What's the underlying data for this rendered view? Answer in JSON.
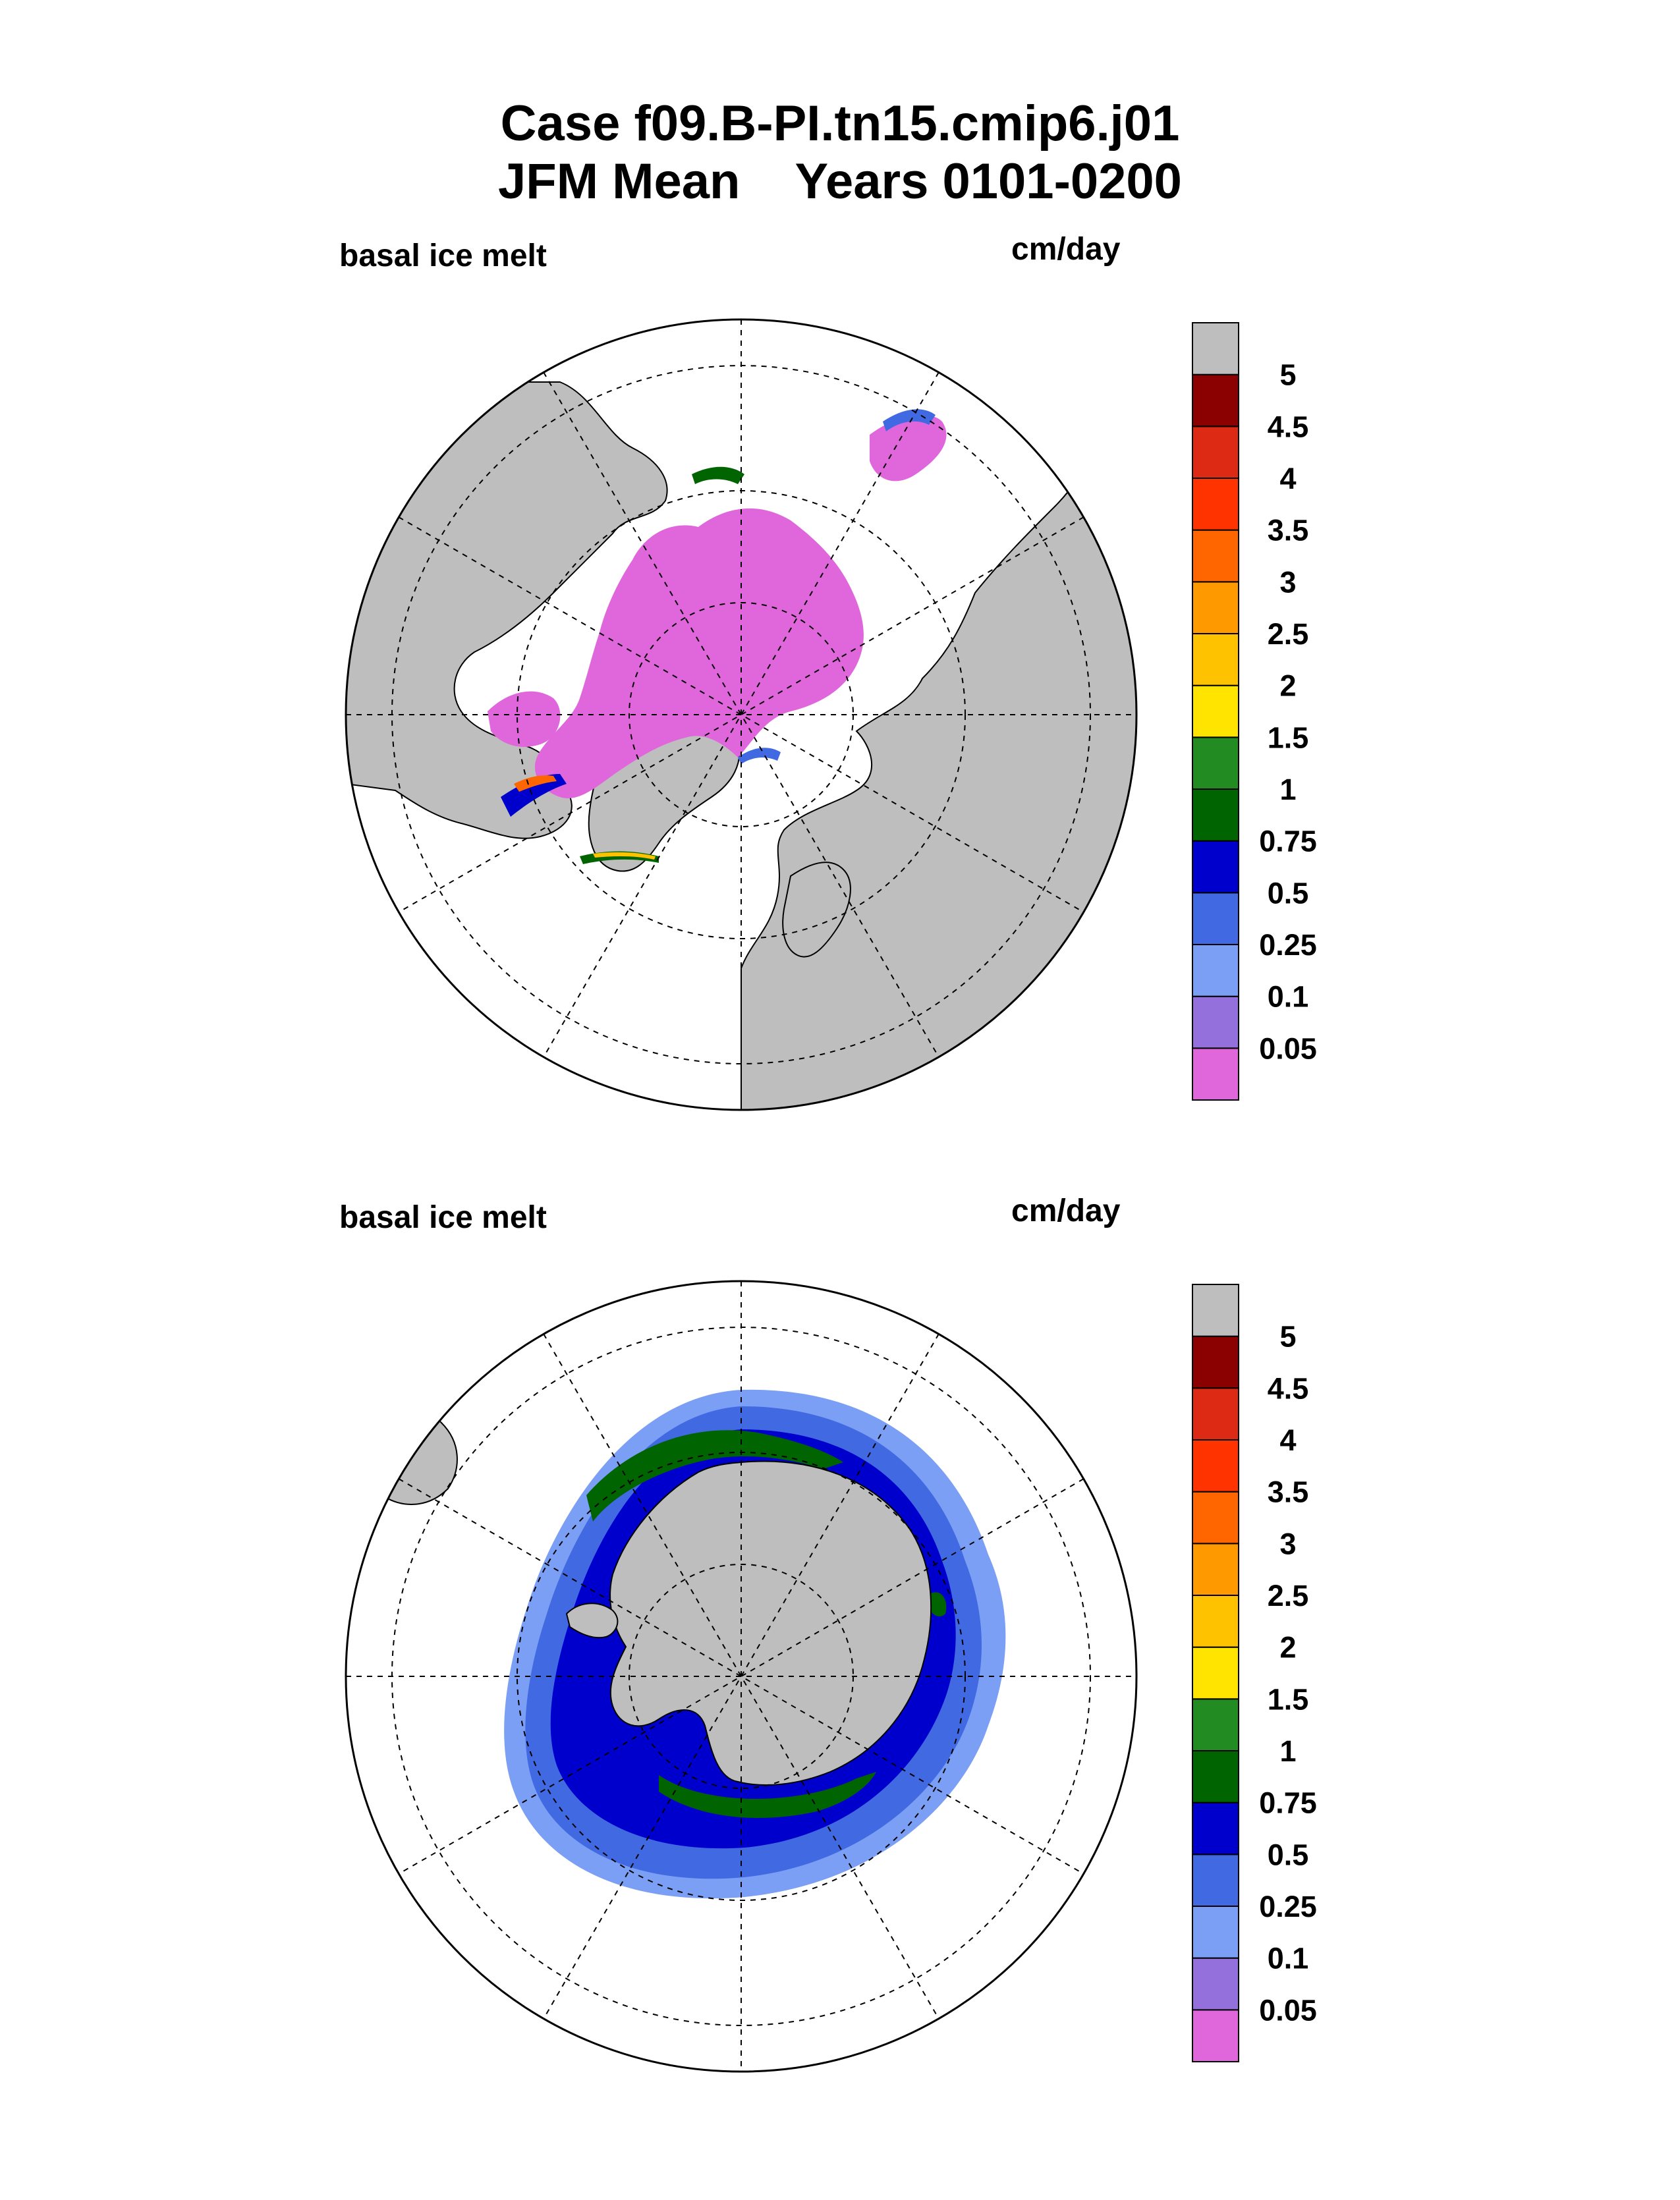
{
  "header": {
    "title_line1": "Case f09.B-PI.tn15.cmip6.j01",
    "title_line2": "JFM Mean    Years 0101-0200"
  },
  "panels": [
    {
      "id": "north",
      "variable_label": "basal ice melt",
      "units_label": "cm/day",
      "hemisphere": "Northern Hemisphere polar stereographic",
      "land_color": "#bebebe"
    },
    {
      "id": "south",
      "variable_label": "basal ice melt",
      "units_label": "cm/day",
      "hemisphere": "Southern Hemisphere polar stereographic",
      "land_color": "#bebebe"
    }
  ],
  "colorbar": {
    "levels": [
      "0.05",
      "0.1",
      "0.25",
      "0.5",
      "0.75",
      "1",
      "1.5",
      "2",
      "2.5",
      "3",
      "3.5",
      "4",
      "4.5",
      "5"
    ],
    "colors": [
      "#e066db",
      "#9370db",
      "#7b9ff5",
      "#4169e1",
      "#0000cd",
      "#006400",
      "#228b22",
      "#ffe400",
      "#ffc200",
      "#ff9900",
      "#ff6600",
      "#ff3300",
      "#dc2a14",
      "#8b0000",
      "#bebebe"
    ]
  }
}
